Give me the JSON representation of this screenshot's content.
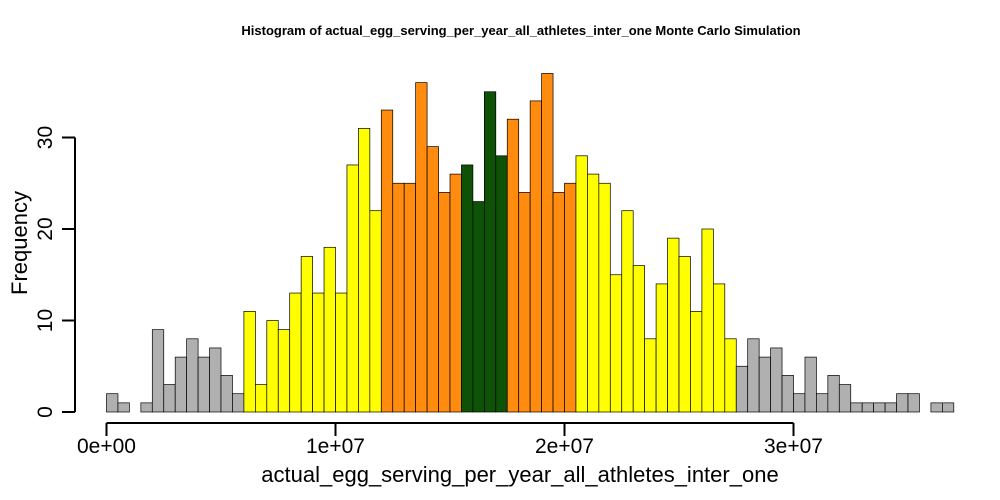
{
  "chart_data": {
    "type": "bar",
    "title": "Histogram of  actual_egg_serving_per_year_all_athletes_inter_one  Monte Carlo Simulation",
    "xlabel": "actual_egg_serving_per_year_all_athletes_inter_one",
    "ylabel": "Frequency",
    "bin_start": 0,
    "bin_width": 500000,
    "xlim": [
      0,
      36500000
    ],
    "ylim": [
      0,
      37
    ],
    "x_ticks": [
      0,
      10000000,
      20000000,
      30000000
    ],
    "x_tick_labels": [
      "0e+00",
      "1e+07",
      "2e+07",
      "3e+07"
    ],
    "y_ticks": [
      0,
      10,
      20,
      30
    ],
    "y_tick_labels": [
      "0",
      "10",
      "20",
      "30"
    ],
    "values": [
      2,
      1,
      0,
      1,
      9,
      3,
      6,
      8,
      6,
      7,
      4,
      2,
      11,
      3,
      10,
      9,
      13,
      17,
      13,
      18,
      13,
      27,
      31,
      22,
      33,
      25,
      25,
      36,
      29,
      24,
      26,
      27,
      23,
      35,
      28,
      32,
      24,
      34,
      37,
      24,
      25,
      28,
      26,
      25,
      15,
      22,
      16,
      8,
      14,
      19,
      17,
      11,
      20,
      14,
      8,
      5,
      8,
      6,
      7,
      4,
      2,
      6,
      2,
      4,
      3,
      1,
      1,
      1,
      1,
      2,
      2,
      0,
      1,
      1
    ],
    "colors": {
      "tail": "#b0b0b0",
      "mid": "#ffff00",
      "inner": "#ff8c0f",
      "center": "#0e5208",
      "border": "#000000"
    },
    "color_ranges": [
      {
        "from": 0,
        "to": 6000000,
        "color": "tail"
      },
      {
        "from": 6000000,
        "to": 12000000,
        "color": "mid"
      },
      {
        "from": 12000000,
        "to": 15500000,
        "color": "inner"
      },
      {
        "from": 15500000,
        "to": 17500000,
        "color": "center"
      },
      {
        "from": 17500000,
        "to": 20500000,
        "color": "inner"
      },
      {
        "from": 20500000,
        "to": 27500000,
        "color": "mid"
      },
      {
        "from": 27500000,
        "to": 36500000,
        "color": "tail"
      }
    ]
  }
}
